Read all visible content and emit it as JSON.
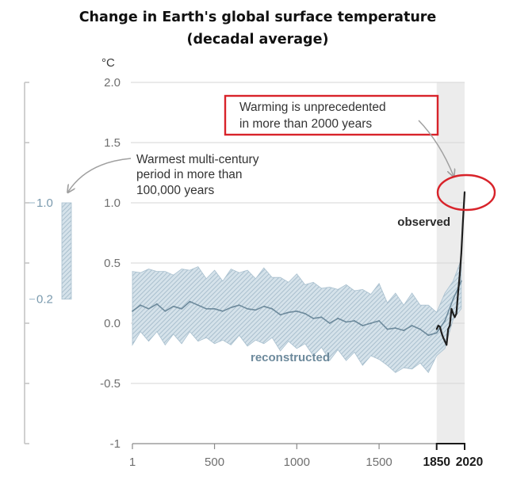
{
  "chart_data": {
    "type": "line",
    "title_line1": "Change in Earth's global surface temperature",
    "title_line2": "(decadal average)",
    "y_unit": "°C",
    "ylim": [
      -1,
      2
    ],
    "yticks": [
      "2.0",
      "1.5",
      "1.0",
      "0.5",
      "0.0",
      "-0.5",
      "-1"
    ],
    "xlim": [
      1,
      2020
    ],
    "xticks": [
      "1",
      "500",
      "1000",
      "1500"
    ],
    "xticks_bold": [
      "1850",
      "2020"
    ],
    "grid": true,
    "shaded_period": [
      1850,
      2020
    ],
    "series": [
      {
        "name": "reconstructed",
        "color": "#6d8a9c",
        "band_color": "#a9c0cf",
        "x": [
          1,
          50,
          100,
          150,
          200,
          250,
          300,
          350,
          400,
          450,
          500,
          550,
          600,
          650,
          700,
          750,
          800,
          850,
          900,
          950,
          1000,
          1050,
          1100,
          1150,
          1200,
          1250,
          1300,
          1350,
          1400,
          1450,
          1500,
          1550,
          1600,
          1650,
          1700,
          1750,
          1800,
          1850,
          1900,
          1950,
          2000
        ],
        "y": [
          0.1,
          0.15,
          0.12,
          0.16,
          0.1,
          0.14,
          0.12,
          0.18,
          0.15,
          0.12,
          0.12,
          0.1,
          0.13,
          0.15,
          0.12,
          0.11,
          0.14,
          0.12,
          0.07,
          0.09,
          0.1,
          0.08,
          0.04,
          0.05,
          0.0,
          0.04,
          0.01,
          0.02,
          -0.02,
          0.0,
          0.02,
          -0.05,
          -0.04,
          -0.06,
          -0.02,
          -0.05,
          -0.1,
          -0.08,
          0.02,
          0.2,
          0.35
        ],
        "lower": [
          -0.15,
          -0.1,
          -0.12,
          -0.1,
          -0.15,
          -0.12,
          -0.14,
          -0.1,
          -0.12,
          -0.15,
          -0.14,
          -0.17,
          -0.15,
          -0.13,
          -0.16,
          -0.17,
          -0.14,
          -0.15,
          -0.2,
          -0.18,
          -0.18,
          -0.2,
          -0.24,
          -0.23,
          -0.28,
          -0.25,
          -0.28,
          -0.27,
          -0.32,
          -0.3,
          -0.27,
          -0.38,
          -0.38,
          -0.4,
          -0.35,
          -0.36,
          -0.38,
          -0.3,
          -0.18,
          0.0,
          0.15
        ],
        "upper": [
          0.4,
          0.45,
          0.42,
          0.46,
          0.4,
          0.43,
          0.42,
          0.47,
          0.44,
          0.4,
          0.41,
          0.38,
          0.42,
          0.45,
          0.41,
          0.4,
          0.43,
          0.41,
          0.35,
          0.37,
          0.38,
          0.35,
          0.31,
          0.32,
          0.27,
          0.31,
          0.29,
          0.3,
          0.25,
          0.27,
          0.3,
          0.2,
          0.22,
          0.18,
          0.22,
          0.18,
          0.12,
          0.12,
          0.22,
          0.38,
          0.5
        ]
      },
      {
        "name": "observed",
        "color": "#1f1f1f",
        "x": [
          1850,
          1860,
          1870,
          1880,
          1890,
          1900,
          1910,
          1920,
          1930,
          1940,
          1950,
          1960,
          1970,
          1980,
          1990,
          2000,
          2010,
          2020
        ],
        "y": [
          -0.05,
          -0.02,
          -0.03,
          -0.08,
          -0.12,
          -0.15,
          -0.18,
          -0.05,
          -0.02,
          0.12,
          0.08,
          0.05,
          0.08,
          0.25,
          0.4,
          0.58,
          0.85,
          1.09
        ]
      }
    ],
    "range_bar": {
      "low": 0.2,
      "high": 1.0,
      "low_label": "0.2",
      "high_label": "1.0",
      "color": "#a9c0cf"
    },
    "annotations": {
      "unprecedented_line1": "Warming is unprecedented",
      "unprecedented_line2": "in more than 2000 years",
      "warmest_line1": "Warmest multi-century",
      "warmest_line2": "period in more than",
      "warmest_line3": "100,000 years",
      "observed_label": "observed",
      "reconstructed_label": "reconstructed",
      "box_color": "#d8232a"
    }
  }
}
